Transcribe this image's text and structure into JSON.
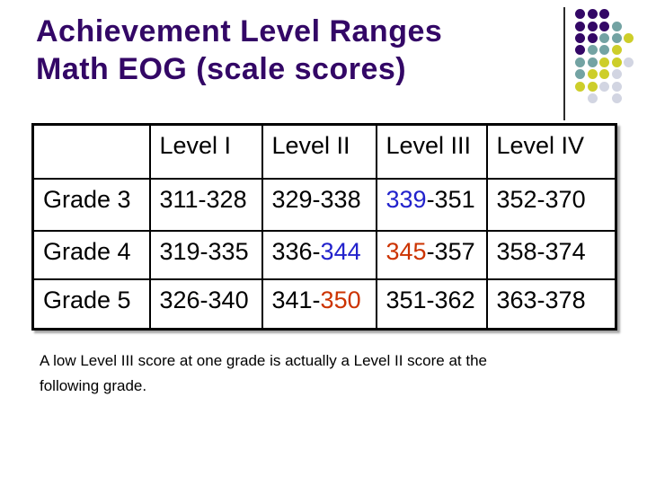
{
  "slide": {
    "title_line1": "Achievement Level Ranges",
    "title_line2": "Math EOG (scale scores)",
    "title_color": "#330766"
  },
  "table": {
    "columns": [
      "",
      "Level I",
      "Level II",
      "Level III",
      "Level IV"
    ],
    "rows": [
      {
        "label": "Grade 3",
        "cells": [
          [
            {
              "text": "311-328"
            }
          ],
          [
            {
              "text": "329-338"
            }
          ],
          [
            {
              "text": "339",
              "color": "#2222CC"
            },
            {
              "text": "-351"
            }
          ],
          [
            {
              "text": "352-370"
            }
          ]
        ]
      },
      {
        "label": "Grade 4",
        "cells": [
          [
            {
              "text": "319-335"
            }
          ],
          [
            {
              "text": "336-"
            },
            {
              "text": "344",
              "color": "#2222CC"
            }
          ],
          [
            {
              "text": "345",
              "color": "#CC3300"
            },
            {
              "text": "-357"
            }
          ],
          [
            {
              "text": "358-374"
            }
          ]
        ]
      },
      {
        "label": "Grade 5",
        "cells": [
          [
            {
              "text": "326-340"
            }
          ],
          [
            {
              "text": "341-"
            },
            {
              "text": "350",
              "color": "#CC3300"
            }
          ],
          [
            {
              "text": "351-362"
            }
          ],
          [
            {
              "text": "363-378"
            }
          ]
        ]
      }
    ],
    "text_color": "#000000",
    "border_color": "#000000",
    "highlight_blue": "#2222CC",
    "highlight_red": "#CC3300"
  },
  "note": {
    "line1": "A low Level III score at one grade is actually a Level II score at the",
    "line2": "following grade."
  },
  "decoration": {
    "palette": {
      "P": "#330766",
      "T": "#73A3A3",
      "Y": "#CDCE2A",
      "G": "#D2D5E2"
    },
    "pattern": [
      "PPP..",
      "PPPT.",
      "PPTTY",
      "PTTY.",
      "TTYYG",
      "TYYG.",
      "YYGG.",
      ".G.G."
    ]
  }
}
